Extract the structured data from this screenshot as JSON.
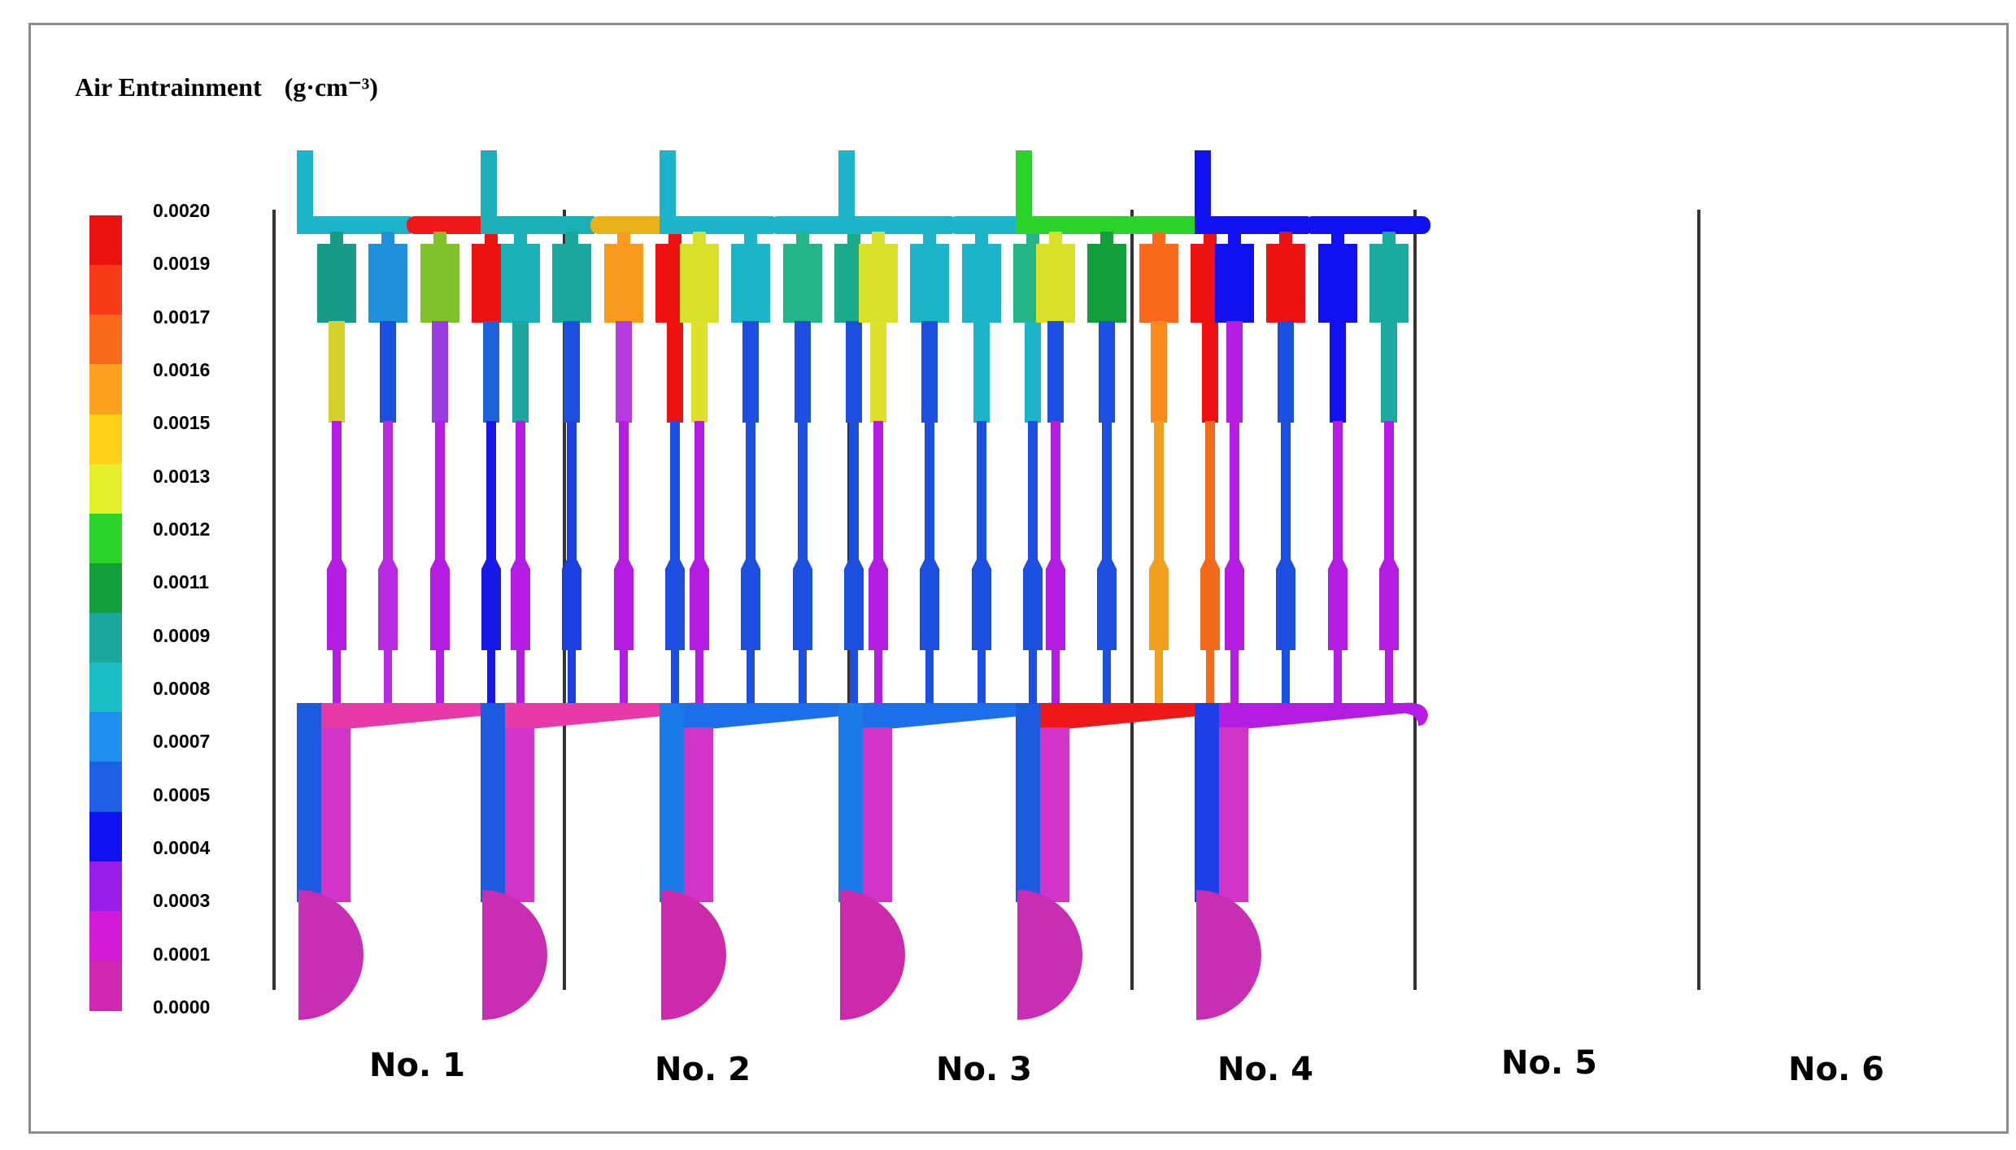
{
  "title": "Air Entrainment",
  "unit": "(g·cm⁻³)",
  "scale": {
    "ticks": [
      "0.0020",
      "0.0019",
      "0.0017",
      "0.0016",
      "0.0015",
      "0.0013",
      "0.0012",
      "0.0011",
      "0.0009",
      "0.0008",
      "0.0007",
      "0.0005",
      "0.0004",
      "0.0003",
      "0.0001",
      "0.0000"
    ],
    "colors": [
      "#ee1111",
      "#f73a18",
      "#fb6a1c",
      "#fca020",
      "#ffd21a",
      "#e2ef2a",
      "#2ad22a",
      "#129e3a",
      "#1ba79e",
      "#1bbdc5",
      "#1e90ef",
      "#1f5fe6",
      "#1010f0",
      "#9b1ee8",
      "#d41cd8",
      "#cf27b1"
    ]
  },
  "panels": [
    {
      "label": "No. 1",
      "shift": 0,
      "base": "#1c5ae0",
      "gate": "#e73aa8",
      "bowl": "#c72eb4",
      "runner_pre": "#1bb4c9",
      "runner_post": "#ee1818",
      "heads": [
        "#189a88",
        "#1e8fd8",
        "#7fc22a",
        "#ee1111"
      ],
      "uppers": [
        "#d3d22a",
        "#1c4fe0",
        "#9c3ae2",
        "#2060d8"
      ],
      "lowers": [
        "#b51ce2",
        "#b82ae0",
        "#b51ce2",
        "#1818e8"
      ]
    },
    {
      "label": "No. 2",
      "shift": 226,
      "base": "#1c5ae0",
      "gate": "#e73aa8",
      "bowl": "#c72eb4",
      "runner_pre": "#1bb0b8",
      "runner_post": "#e9b21a",
      "heads": [
        "#1bb0b8",
        "#1ba79e",
        "#fa9a1c",
        "#ee1111"
      ],
      "uppers": [
        "#1ba79e",
        "#1c4fe0",
        "#b83ae2",
        "#ee1111"
      ],
      "lowers": [
        "#b51ce2",
        "#1c3fe0",
        "#b51ce2",
        "#1c4fe0"
      ]
    },
    {
      "label": "No. 3",
      "shift": 446,
      "base": "#1c7ae8",
      "gate": "#1c6fe8",
      "bowl": "#cc2aaa",
      "runner_pre": "#1bb4c9",
      "runner_post": "#1bb4c9",
      "heads": [
        "#d8e02a",
        "#1bb4c9",
        "#23b48a",
        "#1bab8a"
      ],
      "uppers": [
        "#dfe02a",
        "#1c4fe0",
        "#1c4fe0",
        "#1c4fe0"
      ],
      "lowers": [
        "#b51ce2",
        "#1c4fe0",
        "#1c4fe0",
        "#1c4fe0"
      ]
    },
    {
      "label": "No. 4",
      "shift": 666,
      "base": "#1c7ae8",
      "gate": "#1c6fe8",
      "bowl": "#cc2aaa",
      "runner_pre": "#1bb4c9",
      "runner_post": "#1bb4c9",
      "heads": [
        "#d8e02a",
        "#1bb4c9",
        "#1bb4c9",
        "#23b48a"
      ],
      "uppers": [
        "#dfe02a",
        "#1c4fe0",
        "#1bb4c9",
        "#1bb4c9"
      ],
      "lowers": [
        "#b51ce2",
        "#1c4fe0",
        "#1c4fe0",
        "#1c4fe0"
      ]
    },
    {
      "label": "No. 5",
      "shift": 884,
      "base": "#1c5ae0",
      "gate": "#ee1818",
      "bowl": "#c72eb4",
      "runner_pre": "#2ad22a",
      "runner_post": "#2ad22a",
      "heads": [
        "#d8e02a",
        "#129e3a",
        "#fb6a1c",
        "#ee1111"
      ],
      "uppers": [
        "#1c4fe0",
        "#1c4fe0",
        "#fb8a1c",
        "#ee1111"
      ],
      "lowers": [
        "#b51ce2",
        "#1c4fe0",
        "#f0a01e",
        "#f36a1a"
      ]
    },
    {
      "label": "No. 6",
      "shift": 1104,
      "base": "#1c3fe8",
      "gate": "#b51ce2",
      "bowl": "#c72eb4",
      "runner_pre": "#1010f0",
      "runner_post": "#1010f0",
      "heads": [
        "#1010f0",
        "#ee1111",
        "#1010f0",
        "#1bab9e"
      ],
      "uppers": [
        "#b51ce2",
        "#1c4fe0",
        "#1010f0",
        "#1bab9e"
      ],
      "lowers": [
        "#b51ce2",
        "#1c4fe0",
        "#b51ce2",
        "#b51ce2"
      ]
    }
  ]
}
